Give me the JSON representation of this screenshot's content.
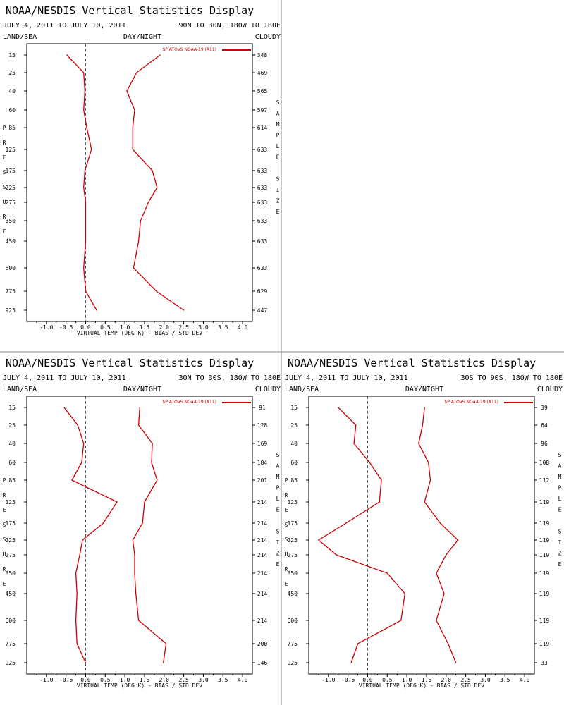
{
  "colors": {
    "series": "#cc0000",
    "axis": "#000000",
    "zero_line": "#555555",
    "divider": "#888888"
  },
  "chart_data": [
    {
      "type": "line",
      "title": "NOAA/NESDIS Vertical Statistics Display",
      "date_range": "JULY 4, 2011 TO JULY 10, 2011",
      "region": "90N TO 30N, 180W TO 180E",
      "header_left": "LAND/SEA",
      "header_center": "DAY/NIGHT",
      "header_right": "CLOUDY",
      "ylabel": "PRESSURE",
      "y2label": "SAMPLE SIZE",
      "xlabel": "VIRTUAL TEMP (DEG K) - BIAS / STD DEV",
      "legend": "SP ATOVS NOAA-19 (A11)",
      "xlim": [
        -1.5,
        4.25
      ],
      "xticks": [
        "-1.0",
        "-0.5",
        "0.0",
        "0.5",
        "1.0",
        "1.5",
        "2.0",
        "2.5",
        "3.0",
        "3.5",
        "4.0"
      ],
      "pressure_levels": [
        "15",
        "25",
        "40",
        "60",
        "85",
        "125",
        "175",
        "225",
        "275",
        "350",
        "450",
        "600",
        "775",
        "925"
      ],
      "sample_size": [
        "348",
        "469",
        "565",
        "597",
        "614",
        "633",
        "633",
        "633",
        "633",
        "633",
        "633",
        "633",
        "629",
        "447"
      ],
      "series": [
        {
          "name": "BIAS",
          "values": [
            -0.48,
            -0.05,
            -0.02,
            -0.05,
            0.03,
            0.15,
            -0.02,
            -0.05,
            0.0,
            0.0,
            0.0,
            -0.05,
            0.0,
            0.28
          ]
        },
        {
          "name": "STD DEV",
          "values": [
            1.9,
            1.3,
            1.05,
            1.25,
            1.2,
            1.2,
            1.7,
            1.82,
            1.6,
            1.4,
            1.35,
            1.22,
            1.8,
            2.5
          ]
        }
      ]
    },
    {
      "type": "line",
      "title": "NOAA/NESDIS Vertical Statistics Display",
      "date_range": "JULY 4, 2011 TO JULY 10, 2011",
      "region": "30N TO 30S, 180W TO 180E",
      "header_left": "LAND/SEA",
      "header_center": "DAY/NIGHT",
      "header_right": "CLOUDY",
      "ylabel": "PRESSURE",
      "y2label": "SAMPLE SIZE",
      "xlabel": "VIRTUAL TEMP (DEG K) - BIAS / STD DEV",
      "legend": "SP ATOVS NOAA-19 (A11)",
      "xlim": [
        -1.5,
        4.25
      ],
      "xticks": [
        "-1.0",
        "-0.5",
        "0.0",
        "0.5",
        "1.0",
        "1.5",
        "2.0",
        "2.5",
        "3.0",
        "3.5",
        "4.0"
      ],
      "pressure_levels": [
        "15",
        "25",
        "40",
        "60",
        "85",
        "125",
        "175",
        "225",
        "275",
        "350",
        "450",
        "600",
        "775",
        "925"
      ],
      "sample_size": [
        "91",
        "128",
        "169",
        "184",
        "201",
        "214",
        "214",
        "214",
        "214",
        "214",
        "214",
        "214",
        "200",
        "146"
      ],
      "series": [
        {
          "name": "BIAS",
          "values": [
            -0.55,
            -0.2,
            -0.05,
            -0.1,
            -0.35,
            0.8,
            0.45,
            -0.08,
            -0.15,
            -0.25,
            -0.22,
            -0.25,
            -0.22,
            0.0
          ]
        },
        {
          "name": "STD DEV",
          "values": [
            1.38,
            1.35,
            1.7,
            1.68,
            1.82,
            1.5,
            1.45,
            1.2,
            1.25,
            1.25,
            1.28,
            1.35,
            2.05,
            1.98
          ]
        }
      ]
    },
    {
      "type": "line",
      "title": "NOAA/NESDIS Vertical Statistics Display",
      "date_range": "JULY 4, 2011 TO JULY 10, 2011",
      "region": "30S TO 90S, 180W TO 180E",
      "header_left": "LAND/SEA",
      "header_center": "DAY/NIGHT",
      "header_right": "CLOUDY",
      "ylabel": "PRESSURE",
      "y2label": "SAMPLE SIZE",
      "xlabel": "VIRTUAL TEMP (DEG K) - BIAS / STD DEV",
      "legend": "SP ATOVS NOAA-19 (A11)",
      "xlim": [
        -1.5,
        4.25
      ],
      "xticks": [
        "-1.0",
        "-0.5",
        "0.0",
        "0.5",
        "1.0",
        "1.5",
        "2.0",
        "2.5",
        "3.0",
        "3.5",
        "4.0"
      ],
      "pressure_levels": [
        "15",
        "25",
        "40",
        "60",
        "85",
        "125",
        "175",
        "225",
        "275",
        "350",
        "450",
        "600",
        "775",
        "925"
      ],
      "sample_size": [
        "39",
        "64",
        "96",
        "108",
        "112",
        "119",
        "119",
        "119",
        "119",
        "119",
        "119",
        "119",
        "119",
        "33"
      ],
      "series": [
        {
          "name": "BIAS",
          "values": [
            -0.75,
            -0.3,
            -0.35,
            0.05,
            0.35,
            0.3,
            -0.55,
            -1.25,
            -0.8,
            0.5,
            0.95,
            0.85,
            -0.25,
            -0.42
          ]
        },
        {
          "name": "STD DEV",
          "values": [
            1.45,
            1.4,
            1.3,
            1.55,
            1.6,
            1.45,
            1.85,
            2.3,
            2.0,
            1.75,
            1.95,
            1.75,
            2.05,
            2.25
          ]
        }
      ]
    }
  ]
}
